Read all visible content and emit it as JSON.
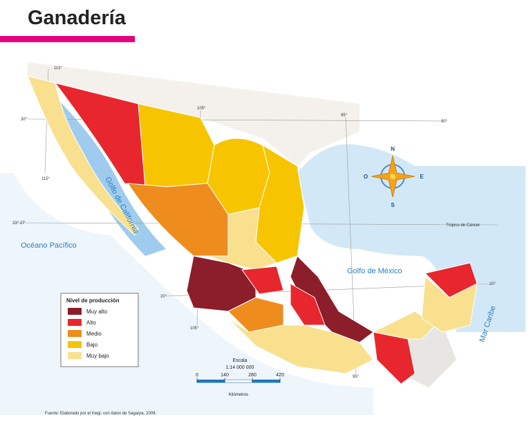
{
  "header": {
    "title": "Ganadería"
  },
  "map": {
    "graticule": [
      "115°",
      "115°",
      "105°",
      "105°",
      "95°",
      "95°",
      "90°",
      "30°",
      "20°",
      "20°",
      "23° 27'"
    ],
    "tropic": "Trópico de Cáncer",
    "water_labels": [
      "Golfo de California",
      "Océano Pacífico",
      "Golfo de México",
      "Mar Caribe"
    ],
    "compass": [
      "N",
      "O",
      "E",
      "S"
    ]
  },
  "legend": {
    "title": "Nivel de producción",
    "items": [
      {
        "label": "Muy alto",
        "color": "#8c1d2a"
      },
      {
        "label": "Alto",
        "color": "#e8262d"
      },
      {
        "label": "Medio",
        "color": "#ef8c1e"
      },
      {
        "label": "Bajo",
        "color": "#f6c500"
      },
      {
        "label": "Muy bajo",
        "color": "#f8e08e"
      }
    ]
  },
  "scale": {
    "title": "Escala",
    "ratio": "1:14 000 000",
    "ticks": [
      0,
      140,
      280,
      420
    ],
    "unit": "Kilómetros"
  },
  "source": "Fuente: Elaborado por el Inegi, con datos de Sagarpa, 2009."
}
